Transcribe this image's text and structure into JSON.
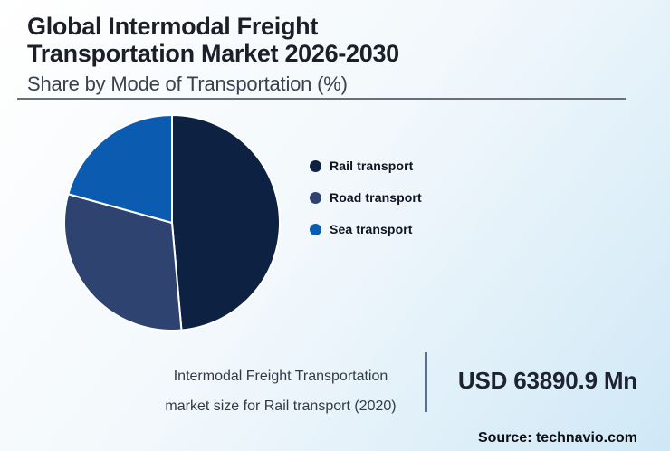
{
  "header": {
    "title_line1": "Global Intermodal Freight",
    "title_line2": "Transportation Market 2026-2030",
    "subtitle": "Share by Mode of Transportation (%)"
  },
  "chart_data": {
    "type": "pie",
    "title": "Global Intermodal Freight Transportation Market 2026-2030",
    "subtitle": "Share by Mode of Transportation (%)",
    "unit": "percent share (values estimated from slice angles, no numeric labels shown)",
    "start_angle_deg": 0,
    "direction": "clockwise",
    "legend_position": "right",
    "separator_color": "#ffffff",
    "series": [
      {
        "name": "Rail transport",
        "value": 48.6,
        "color": "#0d2142"
      },
      {
        "name": "Road transport",
        "value": 30.7,
        "color": "#2e4370"
      },
      {
        "name": "Sea transport",
        "value": 20.7,
        "color": "#0b5cb0"
      }
    ]
  },
  "footer": {
    "caption_line1": "Intermodal Freight Transportation",
    "caption_line2": "market size for Rail transport (2020)",
    "market_size_value": "USD 63890.9 Mn",
    "source": "Source: technavio.com"
  },
  "colors": {
    "background_start": "#ffffff",
    "background_end": "#cfe8f6",
    "title_text": "#1c1f28",
    "subtitle_text": "#3a414d",
    "rule": "#6b7077",
    "divider": "#5a6f91"
  }
}
